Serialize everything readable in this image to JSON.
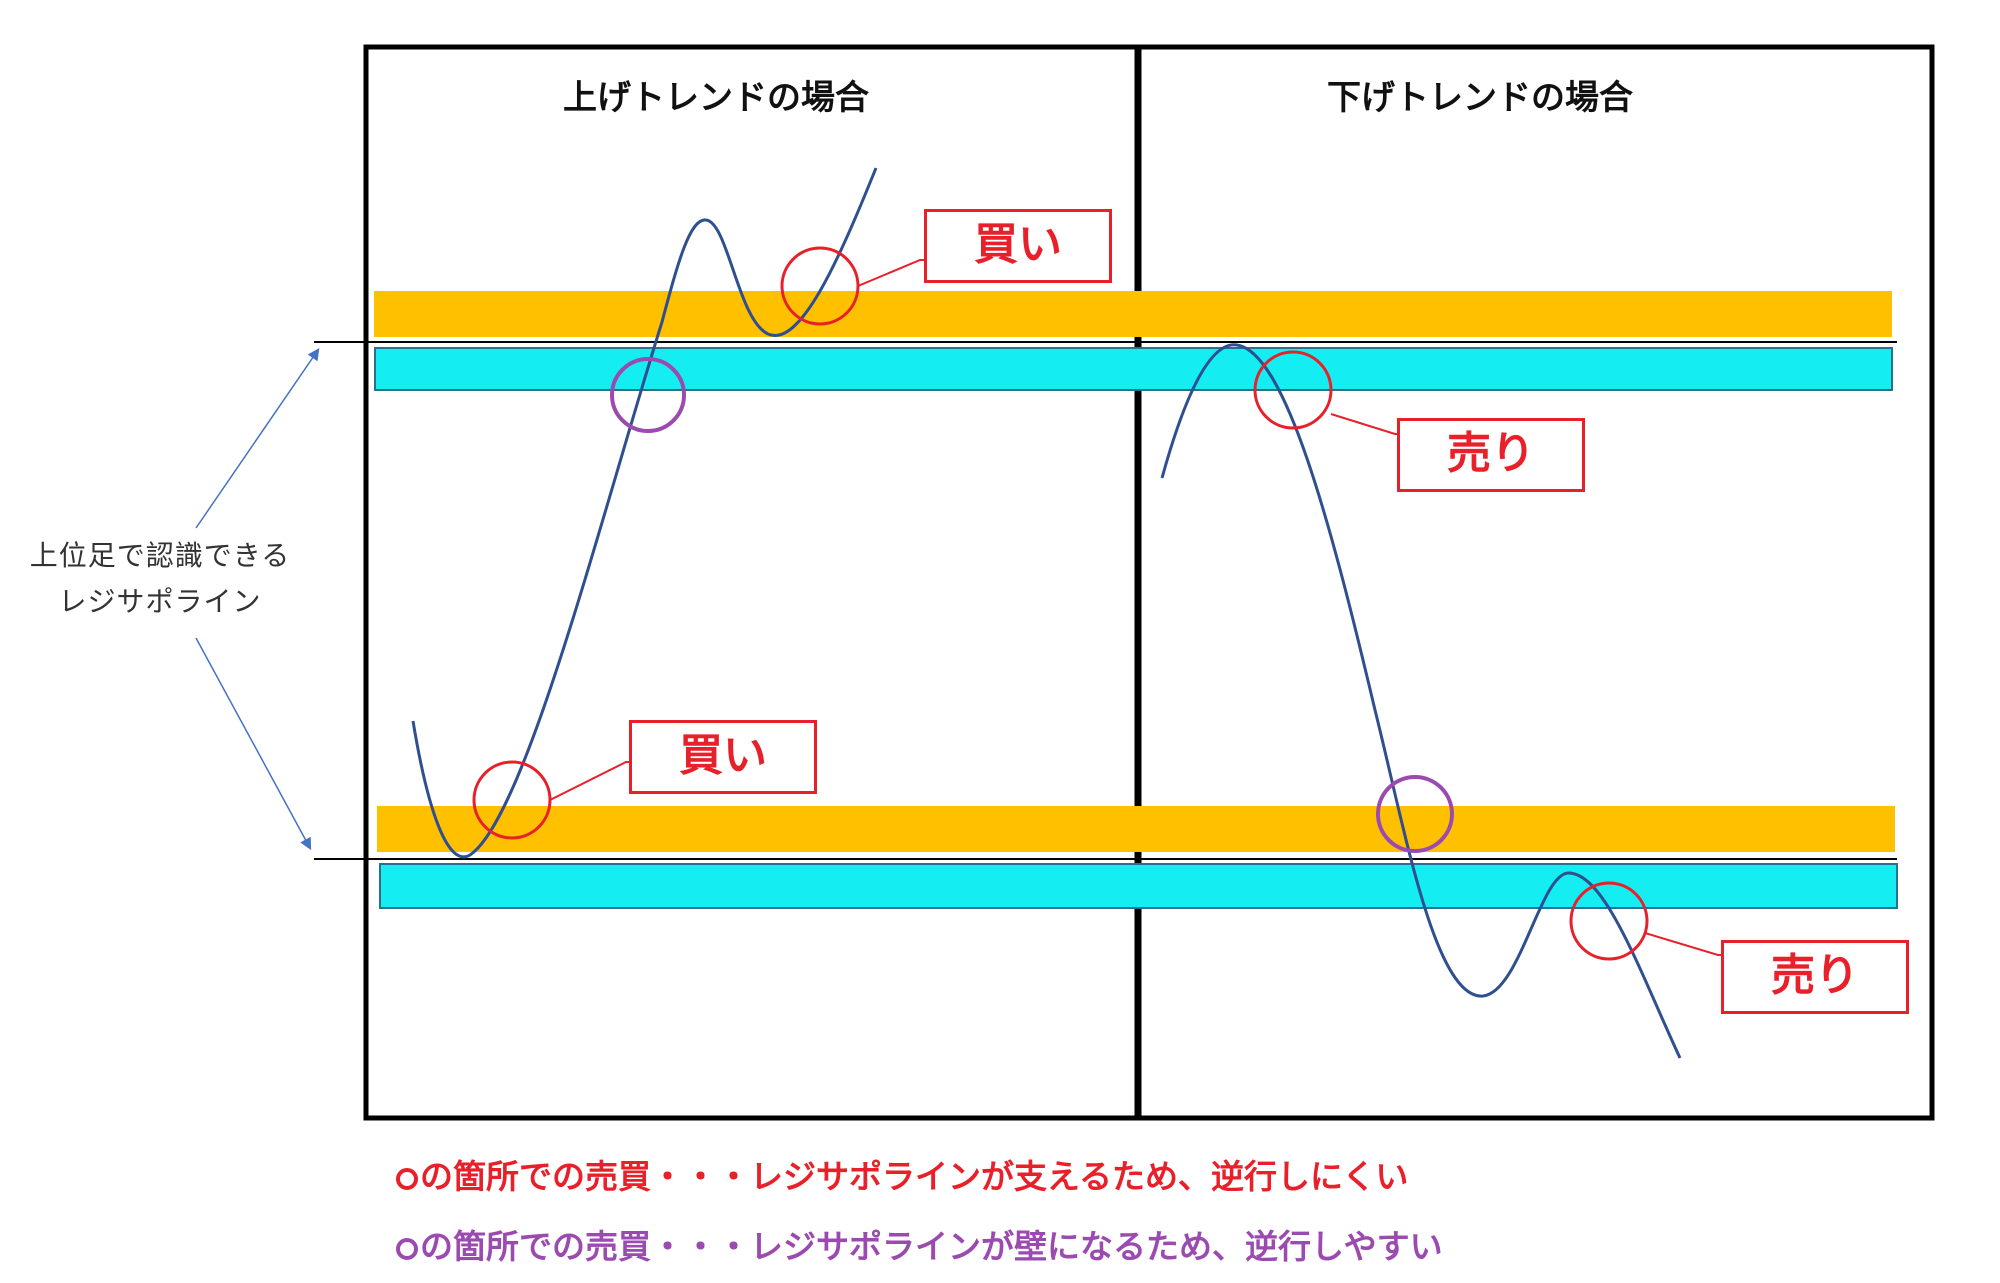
{
  "panels": {
    "left_title": "上げトレンドの場合",
    "right_title": "下げトレンドの場合"
  },
  "side_annotation": {
    "line1": "上位足で認識できる",
    "line2": "レジサポライン"
  },
  "callouts": {
    "buy_upper": "買い",
    "buy_lower": "買い",
    "sell_upper": "売り",
    "sell_lower": "売り"
  },
  "legend": {
    "red_text": "の箇所での売買・・・レジサポラインが支えるため、逆行しにくい",
    "purple_text": "の箇所での売買・・・レジサポラインが壁になるため、逆行しやすい"
  },
  "colors": {
    "orange_band": "#ffc000",
    "cyan_band": "#14eef3",
    "curve": "#2f4f8f",
    "red": "#e8202a",
    "purple": "#9b4bb0",
    "arrow": "#4472c4"
  }
}
